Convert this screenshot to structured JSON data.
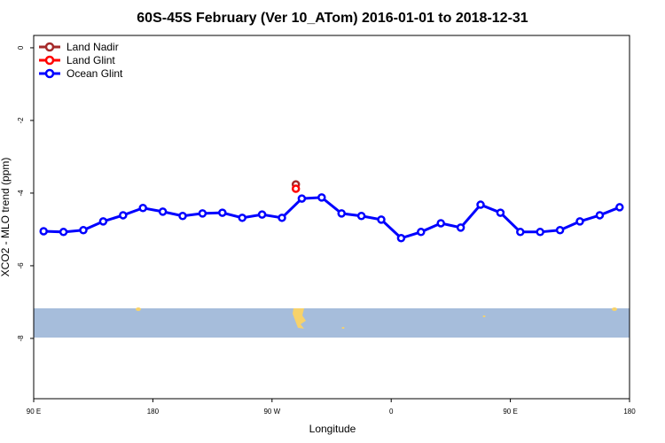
{
  "chart_data": {
    "type": "line",
    "title": "60S-45S February (Ver 10_ATom)   2016-01-01 to 2018-12-31",
    "x_label": "Longitude",
    "y_label": "XCO2 - MLO trend (ppm)",
    "xlim": [
      90,
      540
    ],
    "ylim": [
      -9.66,
      0.34
    ],
    "xticks": [
      {
        "value": 90,
        "label": "90 E"
      },
      {
        "value": 180,
        "label": "180"
      },
      {
        "value": 270,
        "label": "90 W"
      },
      {
        "value": 360,
        "label": "0"
      },
      {
        "value": 450,
        "label": "90 E"
      },
      {
        "value": 540,
        "label": "180"
      }
    ],
    "yticks": [
      -8,
      -6,
      -4,
      -2,
      0
    ],
    "legend": "top-left",
    "series": [
      {
        "name": "Land Nadir",
        "color": "#a52a2a",
        "x": [
          288
        ],
        "values": [
          -3.76
        ]
      },
      {
        "name": "Land Glint",
        "color": "#ff0000",
        "x": [
          288
        ],
        "values": [
          -3.88
        ]
      },
      {
        "name": "Ocean Glint",
        "color": "#0000ff",
        "x": [
          97.5,
          112.5,
          127.5,
          142.5,
          157.5,
          172.5,
          187.5,
          202.5,
          217.5,
          232.5,
          247.5,
          262.5,
          277.5,
          292.5,
          307.5,
          322.5,
          337.5,
          352.5,
          367.5,
          382.5,
          397.5,
          412.5,
          427.5,
          442.5,
          457.5,
          472.5,
          487.5,
          502.5,
          517.5,
          532.5
        ],
        "values": [
          -5.05,
          -5.07,
          -5.02,
          -4.78,
          -4.61,
          -4.41,
          -4.51,
          -4.63,
          -4.56,
          -4.54,
          -4.68,
          -4.59,
          -4.68,
          -4.15,
          -4.12,
          -4.56,
          -4.63,
          -4.73,
          -5.24,
          -5.07,
          -4.83,
          -4.95,
          -4.32,
          -4.54,
          -5.07,
          -5.07,
          -5.02,
          -4.78,
          -4.61,
          -4.39
        ]
      }
    ]
  }
}
